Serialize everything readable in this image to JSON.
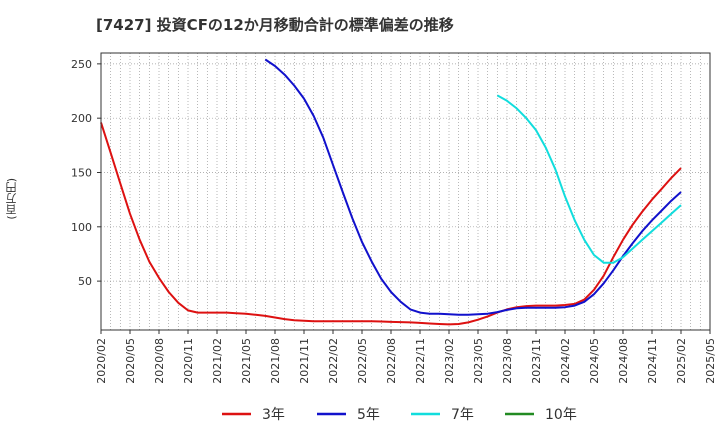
{
  "chart_data": {
    "type": "line",
    "title": "[7427]  投資CFの12か月移動合計の標準偏差の推移",
    "ylabel": "(百万円)",
    "xlabel": "",
    "ylim": [
      5,
      260
    ],
    "yticks": [
      50,
      100,
      150,
      200,
      250
    ],
    "xlim": [
      "2020-02",
      "2025-05"
    ],
    "xticks": [
      "2020/02",
      "2020/05",
      "2020/08",
      "2020/11",
      "2021/02",
      "2021/05",
      "2021/08",
      "2021/11",
      "2022/02",
      "2022/05",
      "2022/08",
      "2022/11",
      "2023/02",
      "2023/05",
      "2023/08",
      "2023/11",
      "2024/02",
      "2024/05",
      "2024/08",
      "2024/11",
      "2025/02",
      "2025/05"
    ],
    "grid": true,
    "legend_position": "bottom",
    "series": [
      {
        "name": "3年",
        "color": "#dd1111",
        "points": [
          [
            "2020-02",
            196
          ],
          [
            "2020-03",
            168
          ],
          [
            "2020-04",
            140
          ],
          [
            "2020-05",
            112
          ],
          [
            "2020-06",
            88
          ],
          [
            "2020-07",
            68
          ],
          [
            "2020-08",
            53
          ],
          [
            "2020-09",
            40
          ],
          [
            "2020-10",
            30
          ],
          [
            "2020-11",
            23
          ],
          [
            "2020-12",
            21
          ],
          [
            "2021-01",
            21
          ],
          [
            "2021-02",
            21
          ],
          [
            "2021-03",
            21
          ],
          [
            "2021-04",
            20.5
          ],
          [
            "2021-05",
            20
          ],
          [
            "2021-06",
            19
          ],
          [
            "2021-07",
            18
          ],
          [
            "2021-08",
            16.5
          ],
          [
            "2021-09",
            15
          ],
          [
            "2021-10",
            14
          ],
          [
            "2021-11",
            13.5
          ],
          [
            "2021-12",
            13
          ],
          [
            "2022-01",
            13
          ],
          [
            "2022-02",
            13
          ],
          [
            "2022-03",
            13
          ],
          [
            "2022-04",
            13
          ],
          [
            "2022-05",
            13
          ],
          [
            "2022-06",
            13
          ],
          [
            "2022-07",
            12.8
          ],
          [
            "2022-08",
            12.5
          ],
          [
            "2022-09",
            12.3
          ],
          [
            "2022-10",
            12
          ],
          [
            "2022-11",
            11.5
          ],
          [
            "2022-12",
            11
          ],
          [
            "2023-01",
            10.5
          ],
          [
            "2023-02",
            10.2
          ],
          [
            "2023-03",
            10.5
          ],
          [
            "2023-04",
            12
          ],
          [
            "2023-05",
            14.5
          ],
          [
            "2023-06",
            17.5
          ],
          [
            "2023-07",
            21
          ],
          [
            "2023-08",
            24
          ],
          [
            "2023-09",
            26
          ],
          [
            "2023-10",
            27
          ],
          [
            "2023-11",
            27.5
          ],
          [
            "2023-12",
            27.5
          ],
          [
            "2024-01",
            27.5
          ],
          [
            "2024-02",
            28
          ],
          [
            "2024-03",
            29
          ],
          [
            "2024-04",
            33
          ],
          [
            "2024-05",
            42
          ],
          [
            "2024-06",
            55
          ],
          [
            "2024-07",
            72
          ],
          [
            "2024-08",
            88
          ],
          [
            "2024-09",
            102
          ],
          [
            "2024-10",
            114
          ],
          [
            "2024-11",
            125
          ],
          [
            "2024-12",
            135
          ],
          [
            "2025-01",
            145
          ],
          [
            "2025-02",
            154
          ]
        ]
      },
      {
        "name": "5年",
        "color": "#1111cc",
        "points": [
          [
            "2021-07",
            254
          ],
          [
            "2021-08",
            248
          ],
          [
            "2021-09",
            240
          ],
          [
            "2021-10",
            230
          ],
          [
            "2021-11",
            218
          ],
          [
            "2021-12",
            202
          ],
          [
            "2022-01",
            182
          ],
          [
            "2022-02",
            157
          ],
          [
            "2022-03",
            132
          ],
          [
            "2022-04",
            108
          ],
          [
            "2022-05",
            86
          ],
          [
            "2022-06",
            68
          ],
          [
            "2022-07",
            52
          ],
          [
            "2022-08",
            40
          ],
          [
            "2022-09",
            31
          ],
          [
            "2022-10",
            24
          ],
          [
            "2022-11",
            21
          ],
          [
            "2022-12",
            20
          ],
          [
            "2023-01",
            20
          ],
          [
            "2023-02",
            19.5
          ],
          [
            "2023-03",
            19
          ],
          [
            "2023-04",
            19
          ],
          [
            "2023-05",
            19.5
          ],
          [
            "2023-06",
            20
          ],
          [
            "2023-07",
            21.5
          ],
          [
            "2023-08",
            23.5
          ],
          [
            "2023-09",
            25
          ],
          [
            "2023-10",
            25.5
          ],
          [
            "2023-11",
            25.5
          ],
          [
            "2023-12",
            25.5
          ],
          [
            "2024-01",
            25.5
          ],
          [
            "2024-02",
            26
          ],
          [
            "2024-03",
            27.5
          ],
          [
            "2024-04",
            31
          ],
          [
            "2024-05",
            38
          ],
          [
            "2024-06",
            48
          ],
          [
            "2024-07",
            60
          ],
          [
            "2024-08",
            73
          ],
          [
            "2024-09",
            85
          ],
          [
            "2024-10",
            96
          ],
          [
            "2024-11",
            106
          ],
          [
            "2024-12",
            115
          ],
          [
            "2025-01",
            124
          ],
          [
            "2025-02",
            132
          ]
        ]
      },
      {
        "name": "7年",
        "color": "#11dddd",
        "points": [
          [
            "2023-07",
            221
          ],
          [
            "2023-08",
            216
          ],
          [
            "2023-09",
            209
          ],
          [
            "2023-10",
            200
          ],
          [
            "2023-11",
            189
          ],
          [
            "2023-12",
            173
          ],
          [
            "2024-01",
            153
          ],
          [
            "2024-02",
            128
          ],
          [
            "2024-03",
            106
          ],
          [
            "2024-04",
            88
          ],
          [
            "2024-05",
            74
          ],
          [
            "2024-06",
            67
          ],
          [
            "2024-07",
            67
          ],
          [
            "2024-08",
            72
          ],
          [
            "2024-09",
            80
          ],
          [
            "2024-10",
            88
          ],
          [
            "2024-11",
            96
          ],
          [
            "2024-12",
            104
          ],
          [
            "2025-01",
            112
          ],
          [
            "2025-02",
            120
          ]
        ]
      },
      {
        "name": "10年",
        "color": "#228b22",
        "points": []
      }
    ]
  }
}
